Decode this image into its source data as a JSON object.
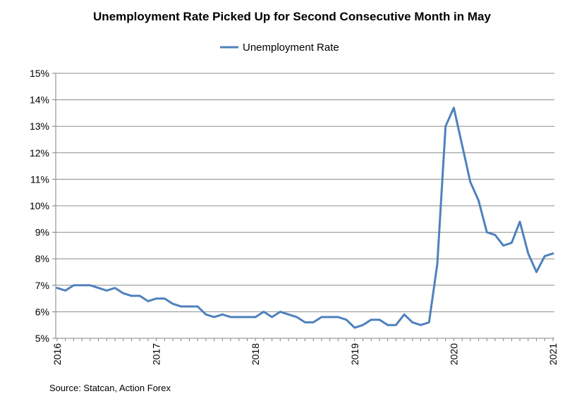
{
  "chart_data": {
    "type": "line",
    "title": "Unemployment  Rate Picked Up for Second Consecutive Month in May",
    "source": "Source: Statcan, Action Forex",
    "xlabel": "",
    "ylabel": "",
    "ylim": [
      5,
      15
    ],
    "y_ticks": [
      "5%",
      "6%",
      "7%",
      "8%",
      "9%",
      "10%",
      "11%",
      "12%",
      "13%",
      "14%",
      "15%"
    ],
    "x_ticks": [
      "2016",
      "2017",
      "2018",
      "2019",
      "2020",
      "2021"
    ],
    "grid": true,
    "legend_position": "top-center",
    "series": [
      {
        "name": "Unemployment Rate",
        "color": "#4f81bd",
        "start": "2016-01",
        "values": [
          6.9,
          6.8,
          7.0,
          7.0,
          7.0,
          6.9,
          6.8,
          6.9,
          6.7,
          6.6,
          6.6,
          6.4,
          6.5,
          6.5,
          6.3,
          6.2,
          6.2,
          6.2,
          5.9,
          5.8,
          5.9,
          5.8,
          5.8,
          5.8,
          5.8,
          6.0,
          5.8,
          6.0,
          5.9,
          5.8,
          5.6,
          5.6,
          5.8,
          5.8,
          5.8,
          5.7,
          5.4,
          5.5,
          5.7,
          5.7,
          5.5,
          5.5,
          5.9,
          5.6,
          5.5,
          5.6,
          7.8,
          13.0,
          13.7,
          12.3,
          10.9,
          10.2,
          9.0,
          8.9,
          8.5,
          8.6,
          9.4,
          8.2,
          7.5,
          8.1,
          8.2
        ]
      }
    ]
  }
}
